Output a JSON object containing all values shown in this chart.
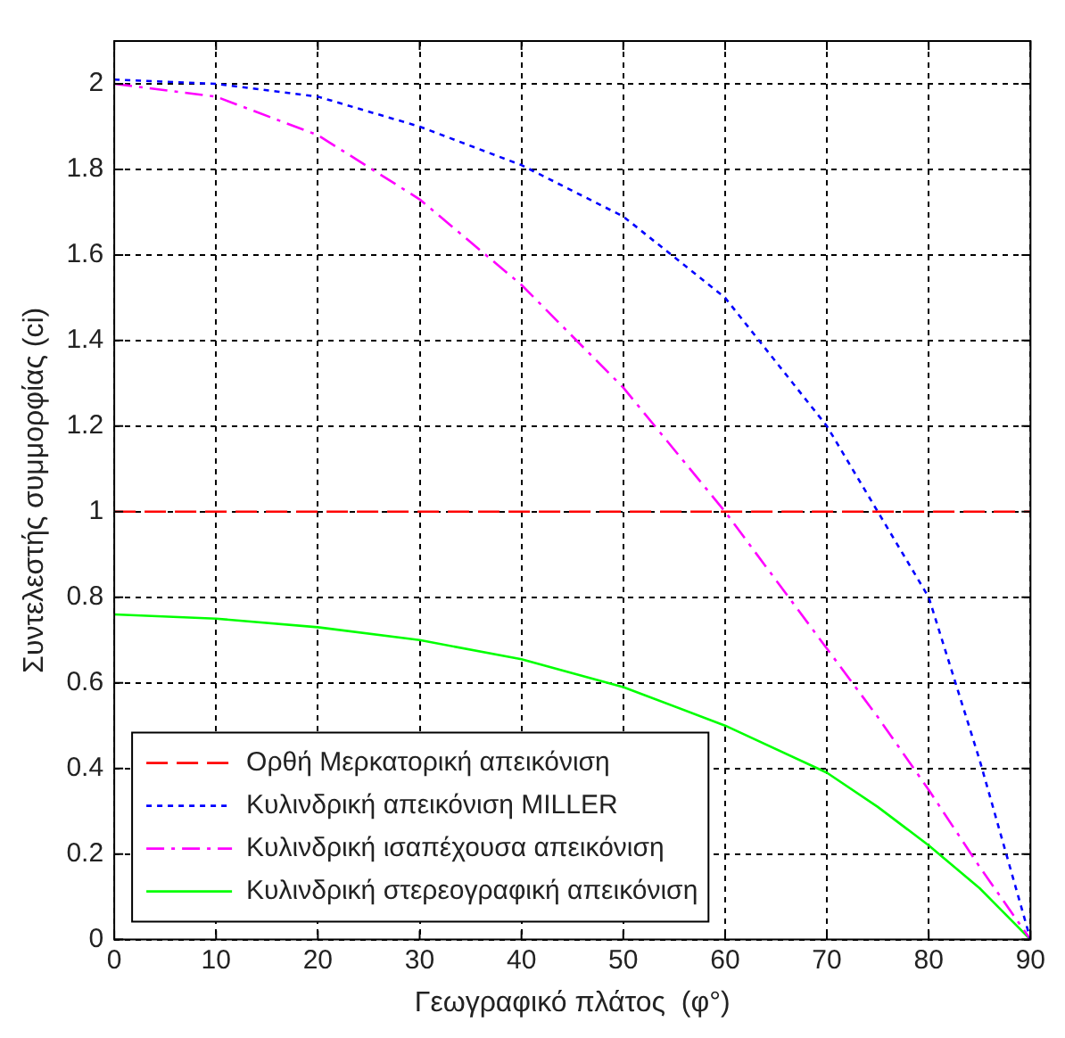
{
  "chart_data": {
    "type": "line",
    "xlabel": "Γεωγραφικό πλάτος  (φ°)",
    "ylabel": "Συντελεστής συμμορφίας (ci)",
    "x": [
      0,
      10,
      20,
      30,
      40,
      50,
      60,
      70,
      75,
      80,
      85,
      90
    ],
    "xlim": [
      0,
      90
    ],
    "xticks": [
      0,
      10,
      20,
      30,
      40,
      50,
      60,
      70,
      80,
      90
    ],
    "ylim": [
      0,
      2.1
    ],
    "yticks": [
      0,
      0.2,
      0.4,
      0.6,
      0.8,
      1,
      1.2,
      1.4,
      1.6,
      1.8,
      2
    ],
    "grid": true,
    "legend": "bottom left",
    "marker": "none",
    "series": [
      {
        "name": "Ορθή Μερκατορική απεικόνιση",
        "color": "#ff0000",
        "line_style": "dashed",
        "values": [
          1,
          1,
          1,
          1,
          1,
          1,
          1,
          1,
          1,
          1,
          1,
          1
        ]
      },
      {
        "name": "Κυλινδρική απεικόνιση MILLER",
        "color": "#0000ff",
        "line_style": "dotted",
        "values": [
          2.01,
          2.0,
          1.97,
          1.9,
          1.81,
          1.69,
          1.5,
          1.2,
          1.0,
          0.8,
          0.42,
          0
        ]
      },
      {
        "name": "Κυλινδρική ισαπέχουσα απεικόνιση",
        "color": "#ff00ff",
        "line_style": "dashdot",
        "values": [
          2,
          1.97,
          1.88,
          1.73,
          1.53,
          1.29,
          1.0,
          0.68,
          0.52,
          0.35,
          0.17,
          0
        ]
      },
      {
        "name": "Κυλινδρική στερεογραφική απεικόνιση",
        "color": "#00ff00",
        "line_style": "solid",
        "values": [
          0.76,
          0.75,
          0.73,
          0.7,
          0.655,
          0.59,
          0.5,
          0.39,
          0.31,
          0.22,
          0.12,
          0
        ]
      }
    ]
  }
}
